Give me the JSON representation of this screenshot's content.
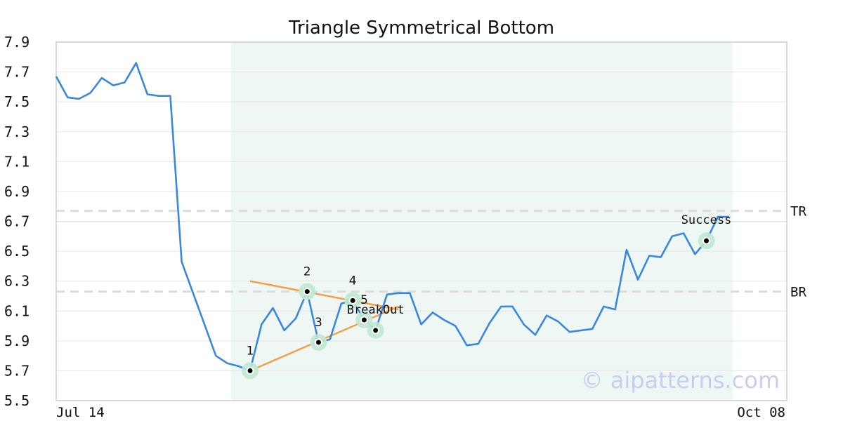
{
  "chart_data": {
    "type": "line",
    "title": "Triangle Symmetrical Bottom",
    "xlabel": "",
    "ylabel": "",
    "ylim": [
      5.5,
      7.9
    ],
    "yticks": [
      "5.5",
      "5.7",
      "5.9",
      "6.1",
      "6.3",
      "6.5",
      "6.7",
      "6.9",
      "7.1",
      "7.3",
      "7.5",
      "7.7",
      "7.9"
    ],
    "xtick_labels": [
      "Jul 14",
      "Oct 08"
    ],
    "grid": "horizontal",
    "series": [
      {
        "color": "#3a87de",
        "values": [
          7.67,
          7.53,
          7.52,
          7.56,
          7.66,
          7.61,
          7.63,
          7.76,
          7.55,
          7.54,
          7.54,
          6.43,
          6.22,
          6.01,
          5.8,
          5.75,
          5.73,
          5.7,
          6.01,
          6.12,
          5.97,
          6.05,
          6.23,
          5.89,
          5.91,
          6.15,
          6.17,
          6.04,
          5.97,
          6.21,
          6.22,
          6.22,
          6.01,
          6.09,
          6.04,
          6.0,
          5.87,
          5.88,
          6.02,
          6.13,
          6.13,
          6.01,
          5.94,
          6.07,
          6.03,
          5.96,
          5.97,
          5.98,
          6.13,
          6.11,
          6.51,
          6.31,
          6.47,
          6.46,
          6.6,
          6.62,
          6.48,
          6.57,
          6.73,
          6.73
        ]
      }
    ],
    "shaded_region": {
      "from_index": 15,
      "to_index": 59,
      "color": "#eef7f3"
    },
    "reference_lines": [
      {
        "label": "TR",
        "y": 6.77
      },
      {
        "label": "BR",
        "y": 6.23
      }
    ],
    "trend_lines": [
      {
        "color": "#f2a04a",
        "from": [
          17,
          6.3
        ],
        "to": [
          30,
          6.11
        ]
      },
      {
        "color": "#f2a04a",
        "from": [
          17,
          5.7
        ],
        "to": [
          30,
          6.13
        ]
      }
    ],
    "points": [
      {
        "label": "1",
        "index": 17,
        "y": 5.7
      },
      {
        "label": "2",
        "index": 22,
        "y": 6.23
      },
      {
        "label": "3",
        "index": 23,
        "y": 5.89
      },
      {
        "label": "4",
        "index": 26,
        "y": 6.17
      },
      {
        "label": "5",
        "index": 27,
        "y": 6.04
      }
    ],
    "annotations": [
      {
        "label": "BreakOut",
        "index": 28,
        "y": 5.97
      },
      {
        "label": "Success",
        "index": 57,
        "y": 6.57
      }
    ],
    "watermark": "© aipatterns.com"
  }
}
